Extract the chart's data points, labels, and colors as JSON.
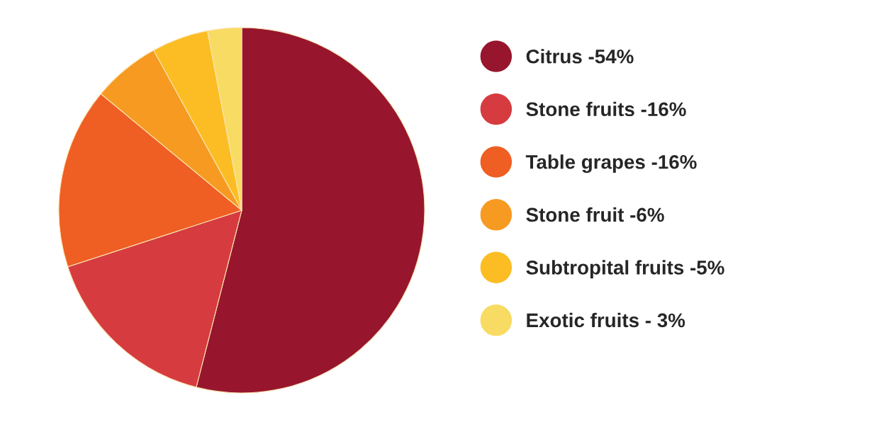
{
  "chart_data": {
    "type": "pie",
    "categories": [
      "Citrus -54%",
      "Stone fruits -16%",
      "Table grapes -16%",
      "Stone fruit -6%",
      "Subtropital fruits -5%",
      "Exotic fruits - 3%"
    ],
    "values": [
      54,
      16,
      16,
      6,
      5,
      3
    ],
    "colors": [
      "#97162e",
      "#d63b3f",
      "#ef5e23",
      "#f69a22",
      "#fbbd23",
      "#f8db62"
    ],
    "legend": "right"
  }
}
